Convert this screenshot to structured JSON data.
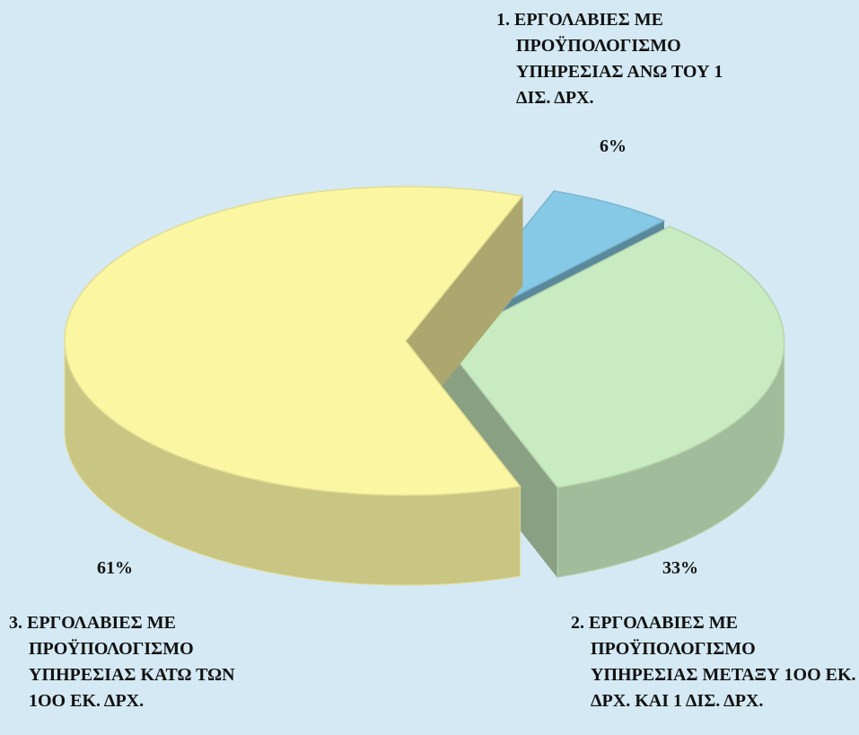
{
  "chart_data": {
    "type": "pie",
    "categories": [
      "1. ΕΡΓΟΛΑΒΙΕΣ ΜΕ ΠΡΟΫΠΟΛΟΓΙΣΜΟ ΥΠΗΡΕΣΙΑΣ ΑΝΩ ΤΟΥ 1 ΔΙΣ. ΔΡΧ.",
      "2. ΕΡΓΟΛΑΒΙΕΣ ΜΕ ΠΡΟΫΠΟΛΟΓΙΣΜΟ ΥΠΗΡΕΣΙΑΣ ΜΕΤΑΞΥ 1OO ΕΚ. ΔΡΧ. ΚΑΙ 1 ΔΙΣ. ΔΡΧ.",
      "3. ΕΡΓΟΛΑΒΙΕΣ ΜΕ ΠΡΟΫΠΟΛΟΓΙΣΜΟ ΥΠΗΡΕΣΙΑΣ ΚΑΤΩ ΤΩΝ 1OO ΕΚ. ΔΡΧ."
    ],
    "values": [
      6,
      33,
      61
    ],
    "value_labels": [
      "6%",
      "33%",
      "61%"
    ],
    "colors": [
      "#86c9e6",
      "#c9ebc1",
      "#fbf6a2"
    ]
  }
}
